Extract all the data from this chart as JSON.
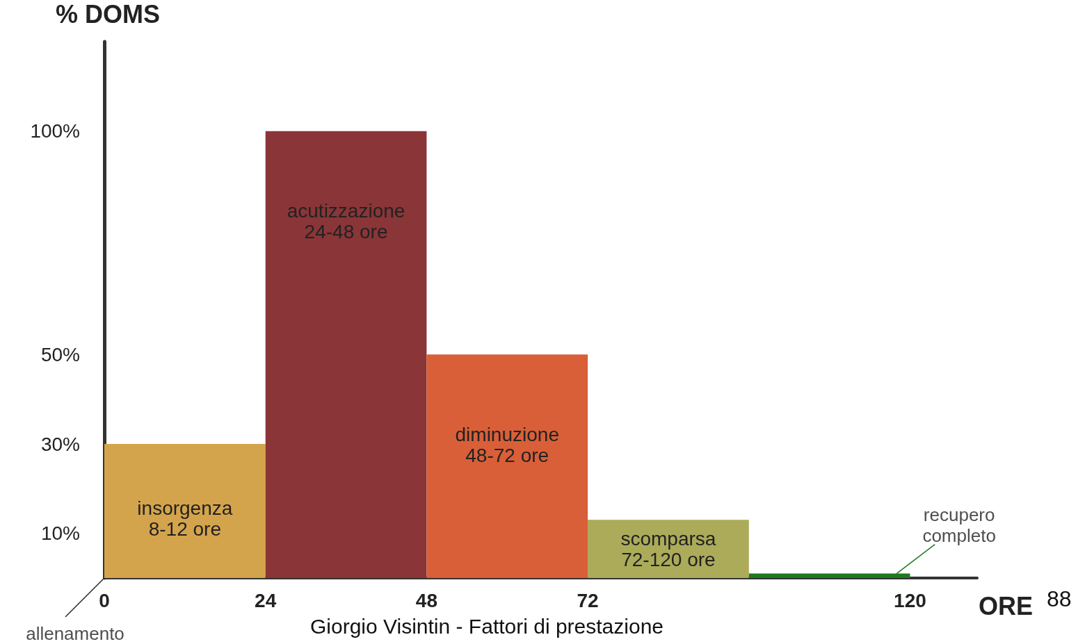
{
  "chart_data": {
    "type": "histogram",
    "ylabel": "% DOMS",
    "xlabel": "ORE",
    "bins": [
      0,
      24,
      48,
      72,
      96,
      120
    ],
    "values": [
      30,
      100,
      50,
      13,
      1
    ],
    "colors": [
      "#d4a44c",
      "#8a3537",
      "#d95f38",
      "#abab5a",
      "#1e7a1e"
    ],
    "xlim": [
      0,
      130
    ],
    "xticks": [
      0,
      24,
      48,
      72,
      120
    ],
    "ylim": [
      0,
      120
    ],
    "yticks": [
      {
        "value": 10,
        "label": "10%"
      },
      {
        "value": 30,
        "label": "30%"
      },
      {
        "value": 50,
        "label": "50%"
      },
      {
        "value": 100,
        "label": "100%"
      }
    ],
    "grid": false,
    "annotations": [
      "insorgenza\n8-12 ore",
      "acutizzazione\n24-48 ore",
      "diminuzione\n48-72 ore",
      "scomparsa\n72-120 ore",
      {
        "text": "recupero\ncompleto",
        "x": 118,
        "y": 1
      },
      {
        "text": "allenamento",
        "x": 0,
        "y": 0
      },
      "Giorgio Visintin - Fattori di prestazione",
      "88"
    ]
  }
}
